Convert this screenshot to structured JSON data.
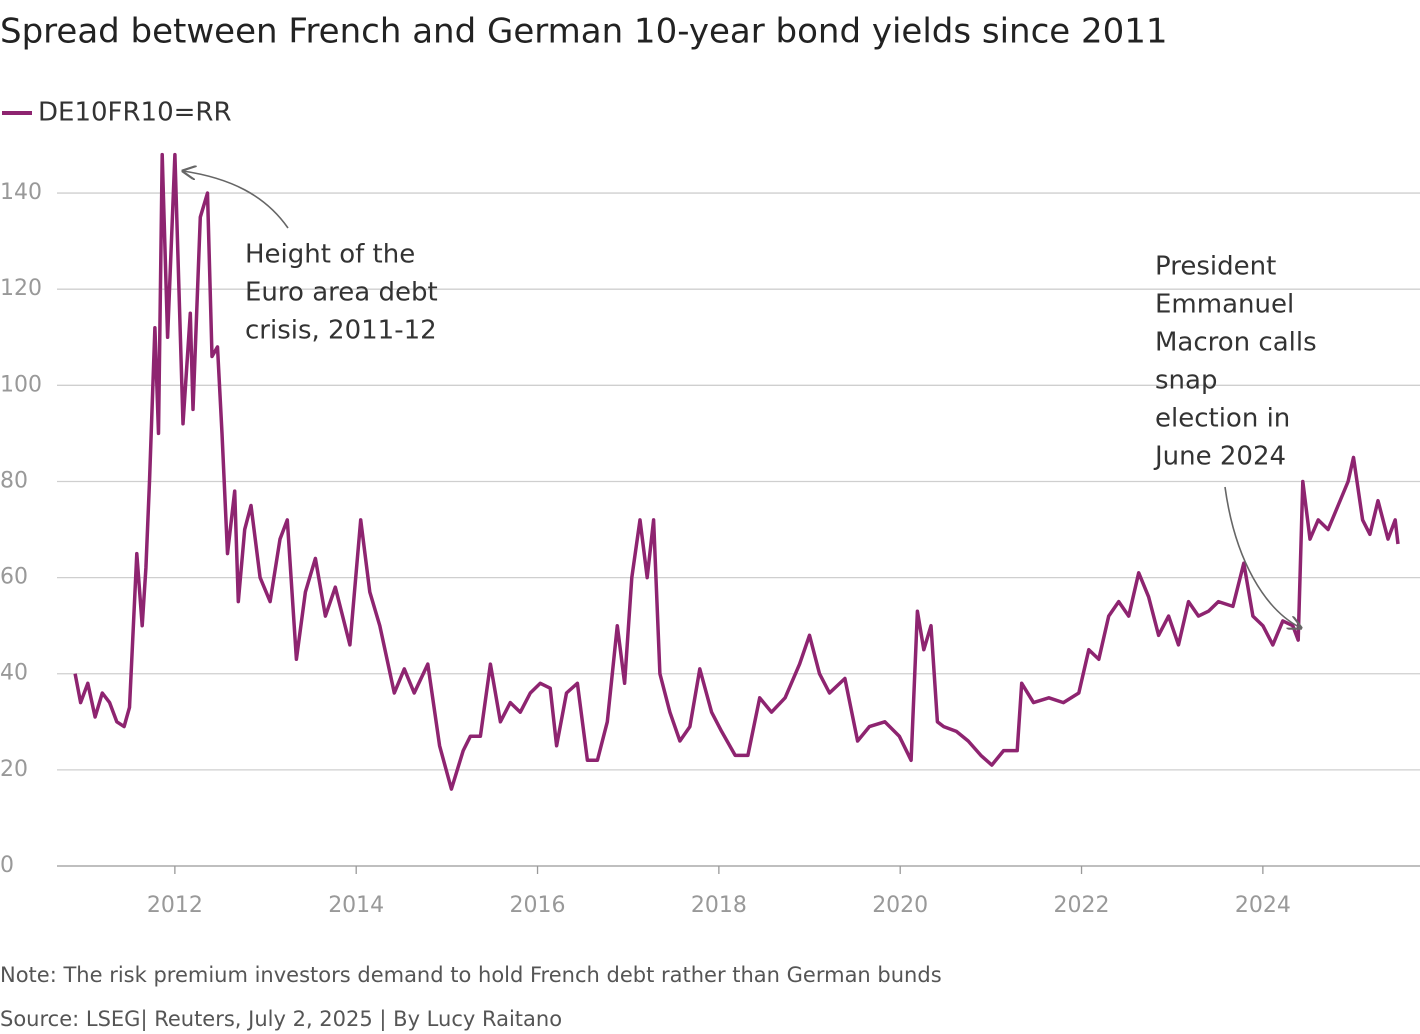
{
  "chart_data": {
    "type": "line",
    "title": "Spread between French and German 10-year bond yields since 2011",
    "note": "Note: The risk premium investors demand to hold French debt rather than German bunds",
    "source": "Source: LSEG| Reuters, July 2, 2025 | By Lucy Raitano",
    "annotations": [
      {
        "lines": [
          "Height of the",
          "Euro area debt",
          "crisis, 2011-12"
        ]
      },
      {
        "lines": [
          "President",
          "Emmanuel",
          "Macron calls",
          "snap",
          "election in",
          "June 2024"
        ]
      }
    ],
    "xlim": [
      2010.7,
      2025.7
    ],
    "xticks": [
      2012,
      2014,
      2016,
      2018,
      2020,
      2022,
      2024
    ],
    "ylim": [
      0,
      150
    ],
    "yticks": [
      0,
      20,
      40,
      60,
      80,
      100,
      120,
      140
    ],
    "grid": true,
    "x": [
      2010.9,
      2010.96,
      2011.04,
      2011.12,
      2011.2,
      2011.28,
      2011.36,
      2011.44,
      2011.5,
      2011.58,
      2011.64,
      2011.68,
      2011.72,
      2011.78,
      2011.82,
      2011.86,
      2011.92,
      2012.0,
      2012.09,
      2012.17,
      2012.2,
      2012.28,
      2012.36,
      2012.41,
      2012.47,
      2012.52,
      2012.58,
      2012.66,
      2012.7,
      2012.77,
      2012.84,
      2012.94,
      2013.05,
      2013.16,
      2013.24,
      2013.34,
      2013.44,
      2013.55,
      2013.66,
      2013.77,
      2013.93,
      2014.05,
      2014.15,
      2014.26,
      2014.42,
      2014.53,
      2014.64,
      2014.79,
      2014.92,
      2015.05,
      2015.18,
      2015.26,
      2015.37,
      2015.48,
      2015.59,
      2015.7,
      2015.81,
      2015.92,
      2016.03,
      2016.14,
      2016.21,
      2016.32,
      2016.44,
      2016.55,
      2016.66,
      2016.77,
      2016.88,
      2016.96,
      2017.04,
      2017.13,
      2017.21,
      2017.28,
      2017.35,
      2017.46,
      2017.57,
      2017.68,
      2017.79,
      2017.92,
      2018.03,
      2018.18,
      2018.32,
      2018.45,
      2018.58,
      2018.73,
      2018.89,
      2019.0,
      2019.11,
      2019.22,
      2019.39,
      2019.53,
      2019.66,
      2019.83,
      2019.99,
      2020.12,
      2020.19,
      2020.26,
      2020.34,
      2020.41,
      2020.48,
      2020.62,
      2020.75,
      2020.89,
      2021.01,
      2021.14,
      2021.29,
      2021.34,
      2021.47,
      2021.64,
      2021.8,
      2021.97,
      2022.08,
      2022.19,
      2022.3,
      2022.41,
      2022.52,
      2022.63,
      2022.74,
      2022.85,
      2022.96,
      2023.07,
      2023.18,
      2023.29,
      2023.4,
      2023.51,
      2023.67,
      2023.79,
      2023.89,
      2024.0,
      2024.11,
      2024.22,
      2024.33,
      2024.39,
      2024.44,
      2024.52,
      2024.61,
      2024.72,
      2024.83,
      2024.94,
      2025.0,
      2025.1,
      2025.18,
      2025.27,
      2025.38,
      2025.46,
      2025.49
    ],
    "series": [
      {
        "name": "DE10FR10=RR",
        "color": "#8e2470",
        "values": [
          40,
          34,
          38,
          31,
          36,
          34,
          30,
          29,
          33,
          65,
          50,
          62,
          80,
          112,
          90,
          148,
          110,
          148,
          92,
          115,
          95,
          135,
          140,
          106,
          108,
          90,
          65,
          78,
          55,
          70,
          75,
          60,
          55,
          68,
          72,
          43,
          57,
          64,
          52,
          58,
          46,
          72,
          57,
          50,
          36,
          41,
          36,
          42,
          25,
          16,
          24,
          27,
          27,
          42,
          30,
          34,
          32,
          36,
          38,
          37,
          25,
          36,
          38,
          22,
          22,
          30,
          50,
          38,
          60,
          72,
          60,
          72,
          40,
          32,
          26,
          29,
          41,
          32,
          28,
          23,
          23,
          35,
          32,
          35,
          42,
          48,
          40,
          36,
          39,
          26,
          29,
          30,
          27,
          22,
          53,
          45,
          50,
          30,
          29,
          28,
          26,
          23,
          21,
          24,
          24,
          38,
          34,
          35,
          34,
          36,
          45,
          43,
          52,
          55,
          52,
          61,
          56,
          48,
          52,
          46,
          55,
          52,
          53,
          55,
          54,
          63,
          52,
          50,
          46,
          51,
          50,
          47,
          80,
          68,
          72,
          70,
          75,
          80,
          85,
          72,
          69,
          76,
          68,
          72,
          67
        ]
      }
    ]
  }
}
